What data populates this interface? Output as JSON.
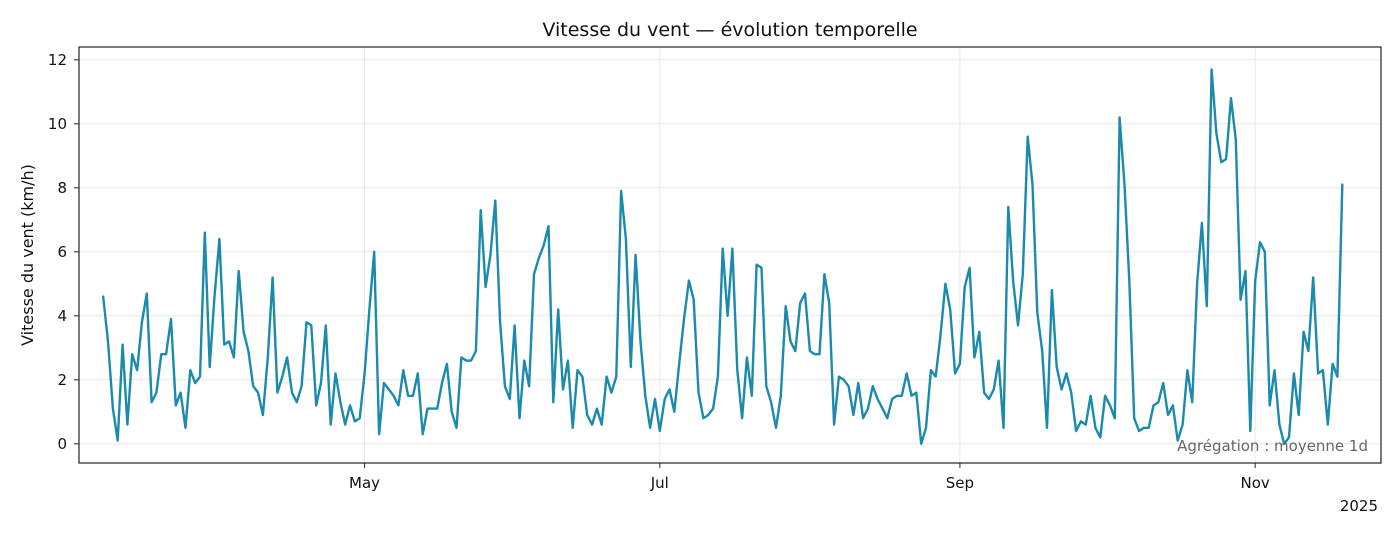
{
  "chart_data": {
    "type": "line",
    "title": "Vitesse du vent — évolution temporelle",
    "xlabel": "",
    "ylabel": "Vitesse du vent (km/h)",
    "ylim": [
      -0.6,
      12.4
    ],
    "xlim": [
      "2025-03-03",
      "2025-11-27"
    ],
    "y_ticks": [
      0,
      2,
      4,
      6,
      8,
      10,
      12
    ],
    "x_ticks": [
      {
        "label": "May",
        "date": "2025-05-01"
      },
      {
        "label": "Jul",
        "date": "2025-07-01"
      },
      {
        "label": "Sep",
        "date": "2025-09-01"
      },
      {
        "label": "Nov",
        "date": "2025-11-01"
      }
    ],
    "x_offset_label": "2025",
    "grid": true,
    "annotation": "Agrégation : moyenne 1d",
    "color": "#1a8aad",
    "series": [
      {
        "start_date": "2025-03-08",
        "frequency": "1d",
        "values": [
          4.6,
          3.2,
          1.1,
          0.1,
          3.1,
          0.6,
          2.8,
          2.3,
          3.8,
          4.7,
          1.3,
          1.6,
          2.8,
          2.8,
          3.9,
          1.2,
          1.6,
          0.5,
          2.3,
          1.9,
          2.1,
          6.6,
          2.4,
          4.6,
          6.4,
          3.1,
          3.2,
          2.7,
          5.4,
          3.5,
          2.9,
          1.8,
          1.6,
          0.9,
          2.7,
          5.2,
          1.6,
          2.1,
          2.7,
          1.6,
          1.3,
          1.8,
          3.8,
          3.7,
          1.2,
          1.9,
          3.7,
          0.6,
          2.2,
          1.3,
          0.6,
          1.2,
          0.7,
          0.8,
          2.2,
          4.2,
          6.0,
          0.3,
          1.9,
          1.7,
          1.5,
          1.2,
          2.3,
          1.5,
          1.5,
          2.2,
          0.3,
          1.1,
          1.1,
          1.1,
          1.9,
          2.5,
          1.0,
          0.5,
          2.7,
          2.6,
          2.6,
          2.9,
          7.3,
          4.9,
          5.9,
          7.6,
          3.8,
          1.8,
          1.4,
          3.7,
          0.8,
          2.6,
          1.8,
          5.3,
          5.8,
          6.2,
          6.8,
          1.3,
          4.2,
          1.7,
          2.6,
          0.5,
          2.3,
          2.1,
          0.9,
          0.6,
          1.1,
          0.6,
          2.1,
          1.6,
          2.1,
          7.9,
          6.4,
          2.4,
          5.9,
          3.2,
          1.5,
          0.5,
          1.4,
          0.4,
          1.4,
          1.7,
          1.0,
          2.5,
          3.9,
          5.1,
          4.5,
          1.6,
          0.8,
          0.9,
          1.1,
          2.1,
          6.1,
          4.0,
          6.1,
          2.3,
          0.8,
          2.7,
          1.5,
          5.6,
          5.5,
          1.8,
          1.3,
          0.5,
          1.5,
          4.3,
          3.2,
          2.9,
          4.4,
          4.7,
          2.9,
          2.8,
          2.8,
          5.3,
          4.4,
          0.6,
          2.1,
          2.0,
          1.8,
          0.9,
          1.9,
          0.8,
          1.1,
          1.8,
          1.4,
          1.1,
          0.8,
          1.4,
          1.5,
          1.5,
          2.2,
          1.5,
          1.6,
          0.0,
          0.5,
          2.3,
          2.1,
          3.4,
          5.0,
          4.2,
          2.2,
          2.5,
          4.9,
          5.5,
          2.7,
          3.5,
          1.6,
          1.4,
          1.7,
          2.6,
          0.5,
          7.4,
          5.1,
          3.7,
          5.3,
          9.6,
          8.1,
          4.1,
          2.9,
          0.5,
          4.8,
          2.4,
          1.7,
          2.2,
          1.6,
          0.4,
          0.7,
          0.6,
          1.5,
          0.5,
          0.2,
          1.5,
          1.2,
          0.8,
          10.2,
          8.1,
          5.1,
          0.8,
          0.4,
          0.5,
          0.5,
          1.2,
          1.3,
          1.9,
          0.9,
          1.2,
          0.1,
          0.6,
          2.3,
          1.3,
          5.0,
          6.9,
          4.3,
          11.7,
          9.7,
          8.8,
          8.9,
          10.8,
          9.5,
          4.5,
          5.4,
          0.4,
          5.1,
          6.3,
          6.0,
          1.2,
          2.3,
          0.6,
          0.0,
          0.2,
          2.2,
          0.9,
          3.5,
          2.9,
          5.2,
          2.2,
          2.3,
          0.6,
          2.5,
          2.1,
          8.1
        ]
      }
    ]
  }
}
